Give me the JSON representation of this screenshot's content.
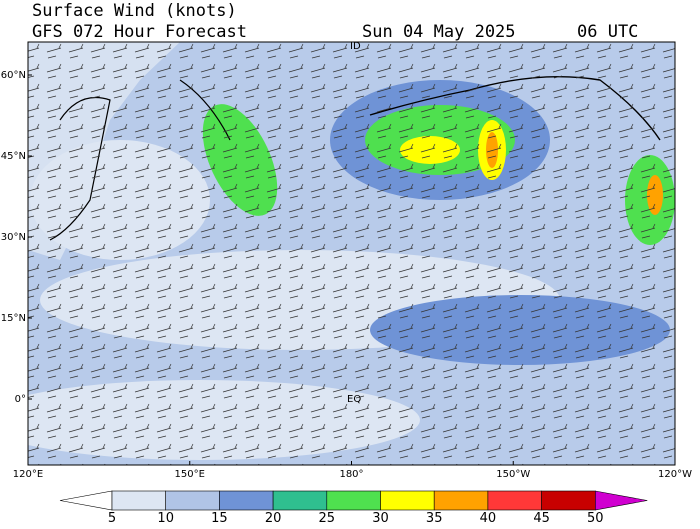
{
  "header": {
    "title": "Surface Wind (knots)",
    "subtitle": "GFS 072 Hour Forecast",
    "date": "Sun 04 May 2025",
    "time": "06 UTC"
  },
  "map": {
    "lat_labels": [
      "60°N",
      "45°N",
      "30°N",
      "15°N",
      "0°"
    ],
    "lon_labels": [
      "120°E",
      "150°E",
      "180°",
      "150°W",
      "120°W"
    ],
    "annotations": [
      "ID",
      "EQ"
    ]
  },
  "colorbar": {
    "ticks": [
      5,
      10,
      15,
      20,
      25,
      30,
      35,
      40,
      45,
      50
    ],
    "colors": [
      "#ffffff",
      "#dde6f3",
      "#b0c4e6",
      "#6f93d6",
      "#2fbf8f",
      "#4fe04f",
      "#ffff00",
      "#ffa200",
      "#ff3838",
      "#c80000",
      "#d000d0"
    ]
  }
}
